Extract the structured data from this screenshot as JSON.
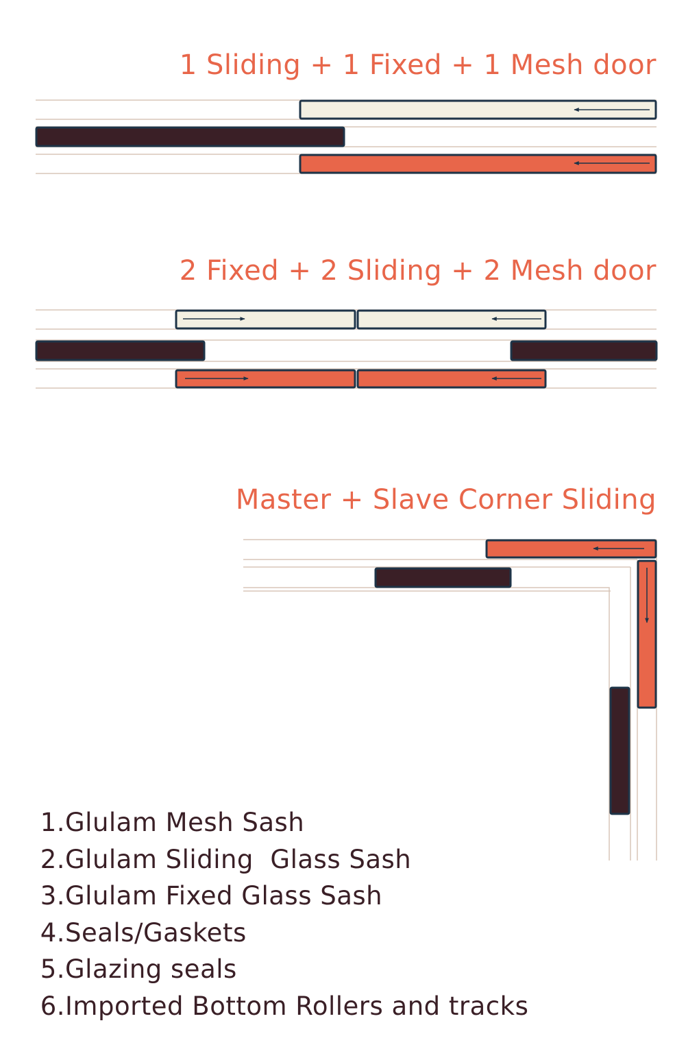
{
  "colors": {
    "mesh_sash": "#f3f0e2",
    "sliding_sash": "#e8664a",
    "fixed_sash": "#3a1f26",
    "sash_outline": "#1e3448",
    "track_line": "#d8c6b8",
    "title_text": "#e8664a",
    "legend_text": "#3a1f26",
    "arrow": "#1e3448"
  },
  "diagrams": [
    {
      "title": "1 Sliding + 1 Fixed + 1 Mesh door"
    },
    {
      "title": "2 Fixed + 2 Sliding + 2 Mesh door"
    },
    {
      "title": "Master + Slave Corner Sliding"
    }
  ],
  "legend": {
    "items": [
      {
        "number": "1.",
        "label": "Glulam Mesh Sash"
      },
      {
        "number": "2.",
        "label": "Glulam Sliding  Glass Sash"
      },
      {
        "number": "3.",
        "label": "Glulam Fixed Glass Sash"
      },
      {
        "number": "4.",
        "label": "Seals/Gaskets"
      },
      {
        "number": "5.",
        "label": "Glazing seals"
      },
      {
        "number": "6.",
        "label": "Imported Bottom Rollers and tracks"
      }
    ]
  }
}
